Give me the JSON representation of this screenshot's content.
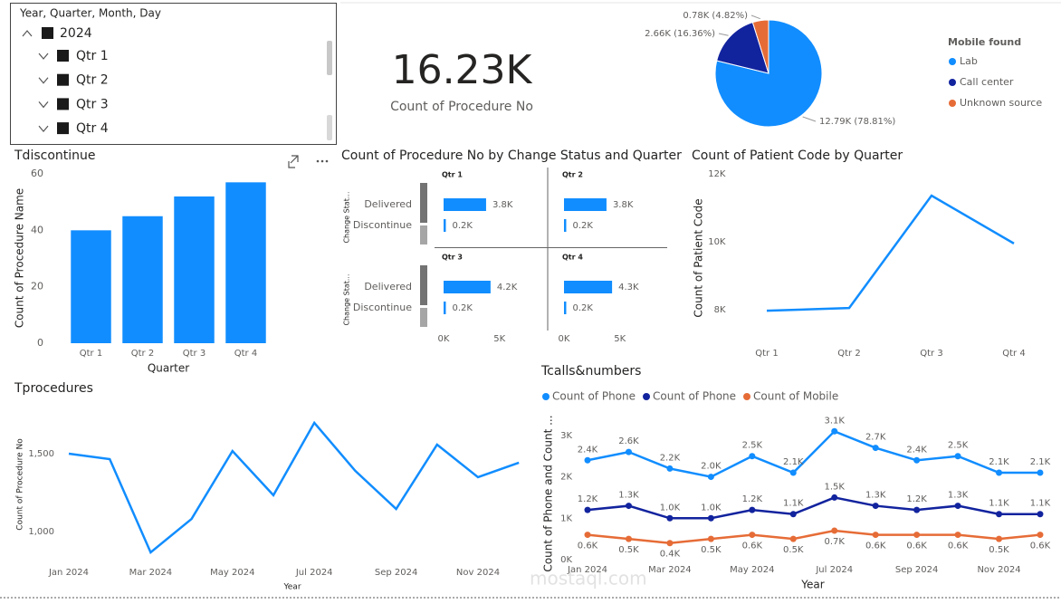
{
  "slicer": {
    "title": "Year, Quarter, Month, Day",
    "items": [
      "2024",
      "Qtr 1",
      "Qtr 2",
      "Qtr 3",
      "Qtr 4"
    ]
  },
  "card": {
    "value": "16.23K",
    "label": "Count of Procedure No"
  },
  "watermark": "mostaql.com",
  "chart_data": [
    {
      "type": "pie",
      "legend_title": "Mobile found",
      "categories": [
        "Lab",
        "Call center",
        "Unknown source"
      ],
      "values": [
        78.81,
        16.36,
        4.82
      ],
      "value_labels": [
        "12.79K (78.81%)",
        "2.66K (16.36%)",
        "0.78K (4.82%)"
      ],
      "colors": [
        "#118DFF",
        "#12239E",
        "#E66C37"
      ],
      "legend": "right"
    },
    {
      "type": "bar",
      "title": "Tdiscontinue",
      "categories": [
        "Qtr 1",
        "Qtr 2",
        "Qtr 3",
        "Qtr 4"
      ],
      "values": [
        40,
        45,
        52,
        57
      ],
      "color": "#118DFF",
      "ylim": [
        0,
        60
      ],
      "yticks": [
        0,
        20,
        40,
        60
      ],
      "xlabel": "Quarter",
      "ylabel": "Count of Procedure Name"
    },
    {
      "type": "multibar",
      "title": "Count of Procedure No by Change Status and Quarter",
      "ylabel": "Change Stat...",
      "categories": [
        "Delivered",
        "Discontinue"
      ],
      "color": "#118DFF",
      "xlim": [
        0,
        8500
      ],
      "xticks": [
        {
          "value": 0,
          "label": "0K"
        },
        {
          "value": 5000,
          "label": "5K"
        }
      ],
      "panels": [
        {
          "title": "Qtr 1",
          "values": [
            3800,
            200
          ],
          "value_labels": [
            "3.8K",
            "0.2K"
          ]
        },
        {
          "title": "Qtr 2",
          "values": [
            3800,
            200
          ],
          "value_labels": [
            "3.8K",
            "0.2K"
          ]
        },
        {
          "title": "Qtr 3",
          "values": [
            4200,
            200
          ],
          "value_labels": [
            "4.2K",
            "0.2K"
          ]
        },
        {
          "title": "Qtr 4",
          "values": [
            4300,
            200
          ],
          "value_labels": [
            "4.3K",
            "0.2K"
          ]
        }
      ]
    },
    {
      "type": "line",
      "title": "Count of Patient Code by Quarter",
      "categories": [
        "Qtr 1",
        "Qtr 2",
        "Qtr 3",
        "Qtr 4"
      ],
      "series": [
        {
          "color": "#118DFF",
          "values": [
            7970,
            8050,
            11360,
            9950
          ]
        }
      ],
      "ylim": [
        7200,
        12200
      ],
      "yticks": [
        {
          "value": 8000,
          "label": "8K"
        },
        {
          "value": 10000,
          "label": "10K"
        },
        {
          "value": 12000,
          "label": "12K"
        }
      ],
      "ylabel": "Count of Patient Code"
    },
    {
      "type": "line",
      "title": "Tprocedures",
      "categories": [
        "Jan 2024",
        null,
        "Mar 2024",
        null,
        "May 2024",
        null,
        "Jul 2024",
        null,
        "Sep 2024",
        null,
        "Nov 2024",
        null
      ],
      "series": [
        {
          "color": "#118DFF",
          "values": [
            1500,
            1465,
            866,
            1081,
            1517,
            1233,
            1698,
            1390,
            1145,
            1558,
            1349,
            1442
          ]
        }
      ],
      "ylim": [
        830,
        1800
      ],
      "yticks": [
        {
          "value": 1000,
          "label": "1,000"
        },
        {
          "value": 1500,
          "label": "1,500"
        }
      ],
      "xlabel": "Year",
      "ylabel": "Count of Procedure No"
    },
    {
      "type": "line",
      "title": "Tcalls&numbers",
      "markers": true,
      "legend": "top",
      "categories": [
        "Jan 2024",
        null,
        "Mar 2024",
        null,
        "May 2024",
        null,
        "Jul 2024",
        null,
        "Sep 2024",
        null,
        "Nov 2024",
        null
      ],
      "series": [
        {
          "name": "Count of Phone",
          "color": "#118DFF",
          "values": [
            2400,
            2600,
            2200,
            2000,
            2500,
            2100,
            3100,
            2700,
            2400,
            2500,
            2100,
            2100
          ],
          "value_labels": [
            "2.4K",
            "2.6K",
            "2.2K",
            "2.0K",
            "2.5K",
            "2.1K",
            "3.1K",
            "2.7K",
            "2.4K",
            "2.5K",
            "2.1K",
            "2.1K"
          ]
        },
        {
          "name": "Count of Phone",
          "color": "#12239E",
          "values": [
            1200,
            1300,
            1000,
            1000,
            1200,
            1100,
            1500,
            1300,
            1200,
            1300,
            1100,
            1100
          ],
          "value_labels": [
            "1.2K",
            "1.3K",
            "1.0K",
            "1.0K",
            "1.2K",
            "1.1K",
            "1.5K",
            "1.3K",
            "1.2K",
            "1.3K",
            "1.1K",
            "1.1K"
          ]
        },
        {
          "name": "Count of Mobile",
          "color": "#E66C37",
          "values": [
            600,
            500,
            400,
            500,
            600,
            500,
            700,
            600,
            600,
            600,
            500,
            600
          ],
          "value_labels": [
            "0.6K",
            "0.5K",
            "0.4K",
            "0.5K",
            "0.6K",
            "0.5K",
            "0.7K",
            "0.6K",
            "0.6K",
            "0.6K",
            "0.5K",
            "0.6K"
          ]
        }
      ],
      "ylim": [
        0,
        3500
      ],
      "yticks": [
        {
          "value": 0,
          "label": "0K"
        },
        {
          "value": 1000,
          "label": "1K"
        },
        {
          "value": 2000,
          "label": "2K"
        },
        {
          "value": 3000,
          "label": "3K"
        }
      ],
      "xlabel": "Year",
      "ylabel": "Count of Phone and Count ..."
    }
  ]
}
